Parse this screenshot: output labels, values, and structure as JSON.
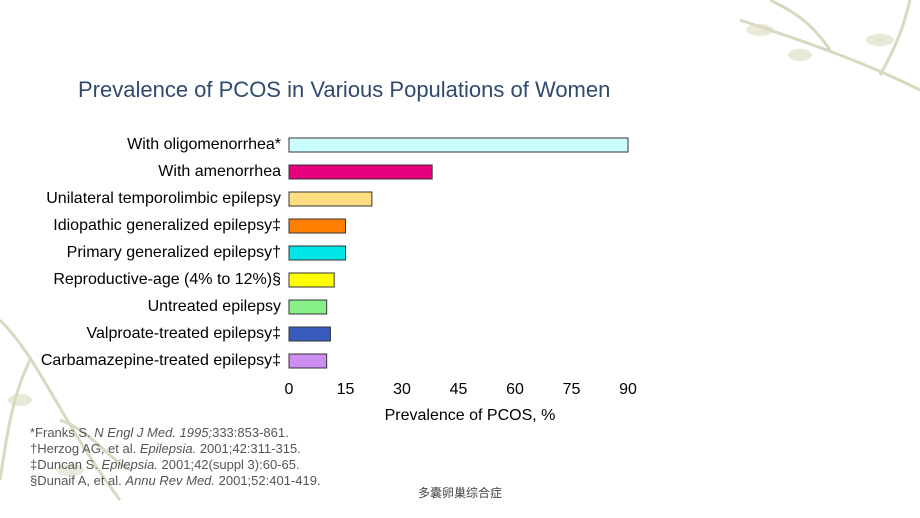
{
  "chart_data": {
    "type": "barh",
    "title": "Prevalence of PCOS in Various Populations of Women",
    "categories": [
      "With oligomenorrhea*",
      "With amenorrhea",
      "Unilateral temporolimbic epilepsy",
      "Idiopathic generalized epilepsy‡",
      "Primary generalized epilepsy†",
      "Reproductive-age (4% to 12%)§",
      "Untreated epilepsy",
      "Valproate-treated epilepsy‡",
      "Carbamazepine-treated epilepsy‡"
    ],
    "values": [
      90,
      38,
      22,
      15,
      15,
      12,
      10,
      11,
      10
    ],
    "colors": [
      "#ccffff",
      "#e6007e",
      "#ffdd80",
      "#ff8000",
      "#00e5e5",
      "#ffff00",
      "#88f088",
      "#3a5cbf",
      "#cc8ef0"
    ],
    "xlabel": "Prevalence of PCOS, %",
    "xlim": [
      0,
      90
    ],
    "xticks": [
      0,
      15,
      30,
      45,
      60,
      75,
      90
    ],
    "footnotes": [
      {
        "author": "*Franks S. ",
        "journal": "N Engl J Med. 1995;",
        "rest": "333:853-861."
      },
      {
        "author": "†Herzog AG, et al. ",
        "journal": "Epilepsia.",
        "rest": " 2001;42:311-315."
      },
      {
        "author": "‡Duncan S. ",
        "journal": "Epilepsia.",
        "rest": " 2001;42(suppl 3):60-65."
      },
      {
        "author": "§Dunaif A, et al. ",
        "journal": "Annu Rev Med.",
        "rest": " 2001;52:401-419."
      }
    ],
    "footer": "多囊卵巢综合症"
  }
}
